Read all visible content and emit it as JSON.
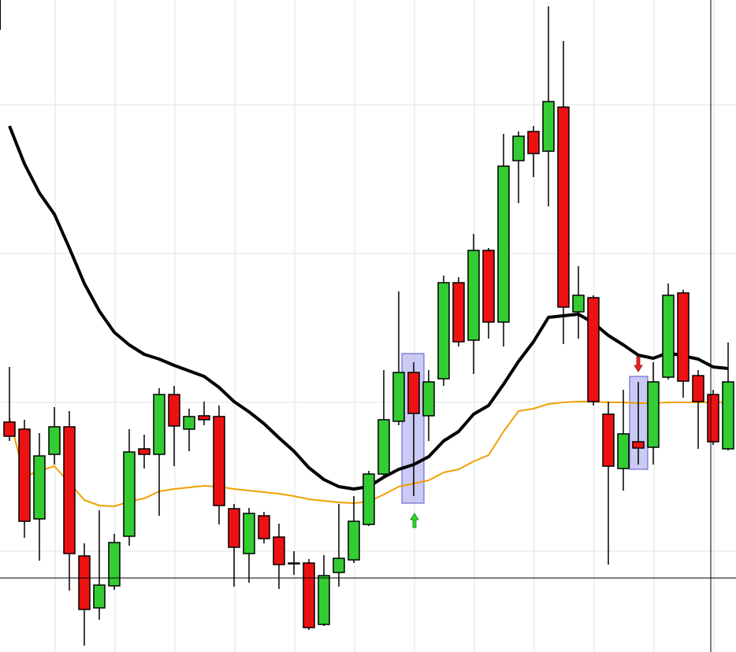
{
  "chart_data": {
    "type": "candlestick",
    "ylim": [
      0,
      828
    ],
    "yticks": [
      128,
      317,
      506,
      695
    ],
    "grid": true,
    "up_color": "#33cc33",
    "down_color": "#ee1111",
    "open": [
      292,
      283,
      169,
      251,
      286,
      122,
      56,
      84,
      147,
      258,
      251,
      327,
      283,
      300,
      299,
      182,
      125,
      173,
      146,
      113,
      113,
      35,
      101,
      117,
      162,
      226,
      293,
      355,
      300,
      347,
      469,
      396,
      510,
      419,
      624,
      661,
      636,
      692,
      432,
      450,
      302,
      233,
      267,
      260,
      349,
      456,
      351,
      327,
      258
    ],
    "high": [
      362,
      295,
      278,
      311,
      306,
      138,
      180,
      150,
      283,
      276,
      335,
      338,
      309,
      318,
      313,
      188,
      183,
      178,
      163,
      128,
      118,
      123,
      188,
      198,
      230,
      358,
      458,
      368,
      358,
      478,
      476,
      531,
      513,
      658,
      661,
      668,
      820,
      776,
      490,
      453,
      318,
      333,
      343,
      368,
      468,
      460,
      358,
      333,
      393
    ],
    "low": [
      268,
      145,
      116,
      238,
      78,
      8,
      41,
      79,
      135,
      233,
      173,
      236,
      255,
      288,
      162,
      83,
      88,
      138,
      80,
      98,
      28,
      33,
      83,
      113,
      160,
      223,
      288,
      198,
      268,
      338,
      388,
      353,
      398,
      388,
      570,
      603,
      566,
      391,
      398,
      313,
      111,
      205,
      238,
      238,
      346,
      323,
      258,
      263,
      256
    ],
    "close": [
      274,
      166,
      249,
      286,
      125,
      54,
      85,
      139,
      254,
      251,
      327,
      287,
      299,
      295,
      186,
      133,
      176,
      144,
      111,
      112,
      31,
      97,
      119,
      166,
      226,
      295,
      355,
      303,
      343,
      469,
      394,
      510,
      419,
      617,
      655,
      633,
      699,
      438,
      453,
      318,
      236,
      277,
      259,
      343,
      453,
      344,
      318,
      267,
      343
    ],
    "series": [
      {
        "color": "#000000",
        "values": [
          668,
          620,
          583,
          556,
          513,
          468,
          433,
          406,
          390,
          378,
          372,
          364,
          357,
          350,
          336,
          318,
          305,
          290,
          272,
          255,
          234,
          219,
          210,
          207,
          210,
          222,
          232,
          238,
          248,
          268,
          280,
          302,
          313,
          340,
          369,
          394,
          425,
          427,
          429,
          418,
          402,
          390,
          377,
          373,
          380,
          376,
          372,
          362,
          360
        ]
      },
      {
        "color": "#f0a000",
        "values": [
          298,
          223,
          230,
          236,
          215,
          193,
          186,
          185,
          191,
          195,
          204,
          207,
          209,
          211,
          210,
          207,
          205,
          203,
          201,
          198,
          194,
          192,
          190,
          189,
          191,
          200,
          210,
          214,
          218,
          228,
          232,
          242,
          250,
          280,
          306,
          309,
          315,
          317,
          318,
          318,
          317,
          317,
          316,
          316,
          317,
          317,
          317,
          317,
          317
        ]
      }
    ]
  }
}
